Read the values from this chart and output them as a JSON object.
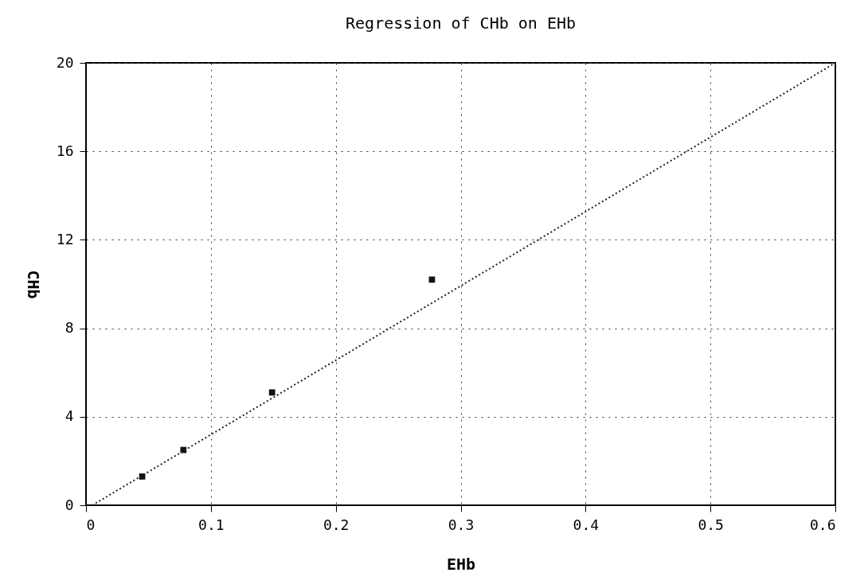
{
  "chart_data": {
    "type": "scatter",
    "title": "Regression of CHb on EHb",
    "xlabel": "EHb",
    "ylabel": "CHb",
    "xlim": [
      0,
      0.6
    ],
    "xticks": [
      0,
      0.1,
      0.2,
      0.3,
      0.4,
      0.5,
      0.6
    ],
    "ylim": [
      0,
      20
    ],
    "yticks": [
      0,
      4,
      8,
      12,
      16,
      20
    ],
    "grid": true,
    "series": [
      {
        "type": "scatter",
        "color": "#111111",
        "marker": "square",
        "x": [
          0.045,
          0.078,
          0.149,
          0.277
        ],
        "values": [
          1.3,
          2.5,
          5.1,
          10.2
        ]
      },
      {
        "type": "line",
        "color": "#222222",
        "line_style": "dotted",
        "x": [
          0.005,
          0.6
        ],
        "values": [
          0,
          20
        ]
      }
    ]
  }
}
